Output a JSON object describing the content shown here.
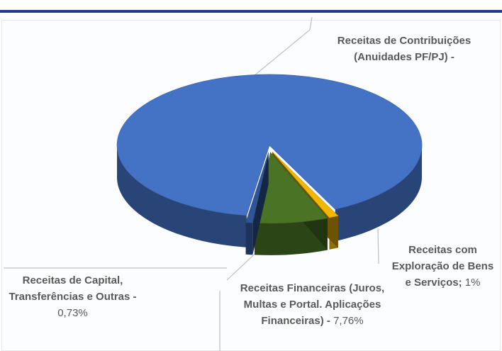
{
  "chart_data": {
    "type": "pie",
    "categories": [
      "Receitas de Contribuições (Anuidades PF/PJ) -",
      "Receitas Financeiras (Juros, Multas e Portal. Aplicações Financeiras) -",
      "Receitas com Exploração de Bens e Serviços;",
      "Receitas de Capital, Transferências e Outras -"
    ],
    "values": [
      90.51,
      7.76,
      1,
      0.73
    ],
    "value_labels": [
      null,
      "7,76%",
      "1%",
      "0,73%"
    ],
    "colors": [
      "#4472c4",
      "#4a7326",
      "#f2b705",
      "#2f5597"
    ]
  }
}
